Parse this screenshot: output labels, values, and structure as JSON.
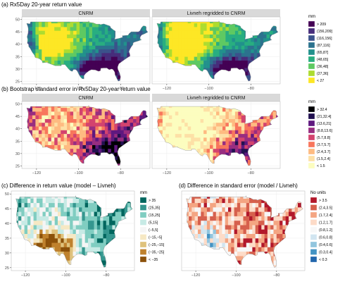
{
  "rows": [
    {
      "title": "(a) Rx5Day 20-year return value",
      "palette": "viridis",
      "legend": {
        "title": "mm",
        "entries": [
          {
            "label": "> 209",
            "color": "#440154"
          },
          {
            "label": "(156,209]",
            "color": "#472d7b"
          },
          {
            "label": "(116,156]",
            "color": "#3b528b"
          },
          {
            "label": "(87,116]",
            "color": "#2c728e"
          },
          {
            "label": "(65,87]",
            "color": "#21918c"
          },
          {
            "label": "(48,65]",
            "color": "#28ae80"
          },
          {
            "label": "(36,48]",
            "color": "#5ec962"
          },
          {
            "label": "(27,36]",
            "color": "#addc30"
          },
          {
            "label": "< 27",
            "color": "#fde725"
          }
        ]
      },
      "panels": [
        {
          "strip": "CNRM"
        },
        {
          "strip": "Livneh regridded to CNRM"
        }
      ]
    },
    {
      "title": "(b) Bootstrap standard error in Rx5Day 20-year return value",
      "palette": "magma",
      "legend": {
        "title": "mm",
        "entries": [
          {
            "label": "> 32.4",
            "color": "#000004"
          },
          {
            "label": "(21,32.4]",
            "color": "#221150"
          },
          {
            "label": "(13.6,21]",
            "color": "#5f187f"
          },
          {
            "label": "(8.8,13.6]",
            "color": "#982d80"
          },
          {
            "label": "(5.7,8.8]",
            "color": "#d3436e"
          },
          {
            "label": "(3.7,5.7]",
            "color": "#f8765c"
          },
          {
            "label": "(2.4,3.7]",
            "color": "#febb81"
          },
          {
            "label": "(1.5,2.4]",
            "color": "#fde0a6"
          },
          {
            "label": "< 1.5",
            "color": "#fcfdbf"
          }
        ]
      },
      "panels": [
        {
          "strip": "CNRM"
        },
        {
          "strip": "Livneh regridded to CNRM"
        }
      ]
    }
  ],
  "bottom": [
    {
      "title": "(c) Difference in return value (model – Livneh)",
      "palette": "brbg",
      "legend": {
        "title": "mm",
        "entries": [
          {
            "label": "> 35",
            "color": "#01665e"
          },
          {
            "label": "(25,35]",
            "color": "#35978f"
          },
          {
            "label": "(15,25]",
            "color": "#80cdc1"
          },
          {
            "label": "(5,15]",
            "color": "#c7eae5"
          },
          {
            "label": "(−5,5]",
            "color": "#f5f5f5"
          },
          {
            "label": "(−15,−5]",
            "color": "#f6e8c3"
          },
          {
            "label": "(−25,−15]",
            "color": "#dfc27d"
          },
          {
            "label": "(−35,−25]",
            "color": "#bf812d"
          },
          {
            "label": "< −35",
            "color": "#8c510a"
          }
        ]
      }
    },
    {
      "title": "(d) Difference in standard error (model / Livneh)",
      "palette": "rdbu",
      "legend": {
        "title": "No units",
        "entries": [
          {
            "label": "> 3.5",
            "color": "#b2182b"
          },
          {
            "label": "(2.4,3.5]",
            "color": "#d6604d"
          },
          {
            "label": "(1.7,2.4]",
            "color": "#f4a582"
          },
          {
            "label": "(1.2,1.7]",
            "color": "#fddbc7"
          },
          {
            "label": "(0.8,1.2]",
            "color": "#f7f7f7"
          },
          {
            "label": "(0.6,0.8]",
            "color": "#d1e5f0"
          },
          {
            "label": "(0.4,0.6]",
            "color": "#92c5de"
          },
          {
            "label": "(0.3,0.4]",
            "color": "#4393c3"
          },
          {
            "label": "< 0.3",
            "color": "#2166ac"
          }
        ]
      }
    }
  ],
  "axes": {
    "x_ticks": [
      -120,
      -100,
      -80
    ],
    "y_ticks": [
      25,
      30,
      35,
      40,
      45,
      50
    ],
    "x_tick_labels": [
      "−120",
      "−100",
      "−80"
    ],
    "y_tick_labels": [
      "25",
      "30",
      "35",
      "40",
      "45",
      "50"
    ],
    "xlim": [
      -127,
      -66
    ],
    "ylim": [
      24,
      51
    ]
  },
  "chart_data": [
    {
      "type": "heatmap",
      "title": "(a) Rx5Day 20-year return value",
      "panels": [
        "CNRM",
        "Livneh regridded to CNRM"
      ],
      "legend_title": "mm",
      "bins": [
        "> 209",
        "(156,209]",
        "(116,156]",
        "(87,116]",
        "(65,87]",
        "(48,65]",
        "(36,48]",
        "(27,36]",
        "< 27"
      ],
      "xlim": [
        -127,
        -66
      ],
      "ylim": [
        24,
        51
      ],
      "x_ticks": [
        -120,
        -100,
        -80
      ],
      "y_ticks": [
        25,
        30,
        35,
        40,
        45,
        50
      ],
      "legend_position": "right"
    },
    {
      "type": "heatmap",
      "title": "(b) Bootstrap standard error in Rx5Day 20-year return value",
      "panels": [
        "CNRM",
        "Livneh regridded to CNRM"
      ],
      "legend_title": "mm",
      "bins": [
        "> 32.4",
        "(21,32.4]",
        "(13.6,21]",
        "(8.8,13.6]",
        "(5.7,8.8]",
        "(3.7,5.7]",
        "(2.4,3.7]",
        "(1.5,2.4]",
        "< 1.5"
      ],
      "xlim": [
        -127,
        -66
      ],
      "ylim": [
        24,
        51
      ],
      "legend_position": "right"
    },
    {
      "type": "heatmap",
      "title": "(c) Difference in return value (model – Livneh)",
      "legend_title": "mm",
      "bins": [
        "> 35",
        "(25,35]",
        "(15,25]",
        "(5,15]",
        "(−5,5]",
        "(−15,−5]",
        "(−25,−15]",
        "(−35,−25]",
        "< −35"
      ],
      "xlim": [
        -127,
        -66
      ],
      "ylim": [
        24,
        51
      ],
      "legend_position": "right"
    },
    {
      "type": "heatmap",
      "title": "(d) Difference in standard error (model / Livneh)",
      "legend_title": "No units",
      "bins": [
        "> 3.5",
        "(2.4,3.5]",
        "(1.7,2.4]",
        "(1.2,1.7]",
        "(0.8,1.2]",
        "(0.6,0.8]",
        "(0.4,0.6]",
        "(0.3,0.4]",
        "< 0.3"
      ],
      "xlim": [
        -127,
        -66
      ],
      "ylim": [
        24,
        51
      ],
      "legend_position": "right"
    }
  ]
}
